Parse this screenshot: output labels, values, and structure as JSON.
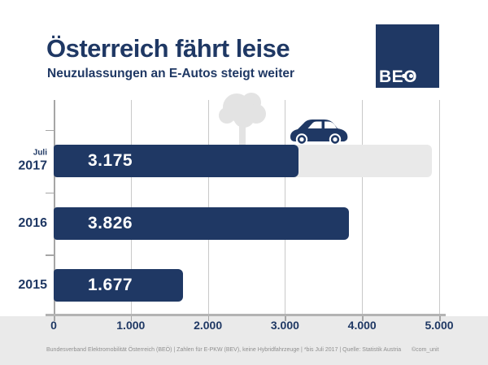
{
  "header": {
    "title": "Österreich fährt leise",
    "subtitle": "Neuzulassungen an E-Autos steigt weiter"
  },
  "logo": {
    "text": "BEO"
  },
  "chart_data": {
    "type": "bar",
    "orientation": "horizontal",
    "title": "Österreich fährt leise",
    "subtitle": "Neuzulassungen an E-Autos steigt weiter",
    "categories": [
      "Juli 2017",
      "2016",
      "2015"
    ],
    "values": [
      3175,
      3826,
      1677
    ],
    "rows": [
      {
        "label_small": "Juli",
        "label": "2017",
        "value": 3175,
        "display": "3.175",
        "track_to": 4900
      },
      {
        "label_small": "",
        "label": "2016",
        "value": 3826,
        "display": "3.826",
        "track_to": 0
      },
      {
        "label_small": "",
        "label": "2015",
        "value": 1677,
        "display": "1.677",
        "track_to": 0
      }
    ],
    "xlabel": "",
    "ylabel": "",
    "xlim": [
      0,
      5000
    ],
    "x_ticks": [
      0,
      1000,
      2000,
      3000,
      4000,
      5000
    ],
    "x_tick_labels": [
      "0",
      "1.000",
      "2.000",
      "3.000",
      "4.000",
      "5.000"
    ],
    "grid": true,
    "legend": false,
    "bar_color": "#1F3864",
    "track_color": "#E9E9E9",
    "note": "Light gray track bar on the Juli 2017 row extends to about 4.900 as a visual placeholder for the rest of the year"
  },
  "decorations": {
    "tree_icon": "tree-silhouette",
    "car_icon": "electric-car-silhouette"
  },
  "footer": {
    "source": "Bundesverband Elektromobilität Österreich (BEÖ) | Zahlen für E-PKW (BEV), keine Hybridfahrzeuge | *bis Juli 2017 | Quelle: Statistik Austria",
    "credit": "©com_unit"
  },
  "colors": {
    "navy": "#1F3864",
    "track_gray": "#E9E9E9",
    "band_gray": "#EAEAEA",
    "grid_gray": "#C9C9C9",
    "axis_gray": "#B3B3B3",
    "tree_gray": "#E3E3E3",
    "footer_text_gray": "#8F8F8F"
  }
}
